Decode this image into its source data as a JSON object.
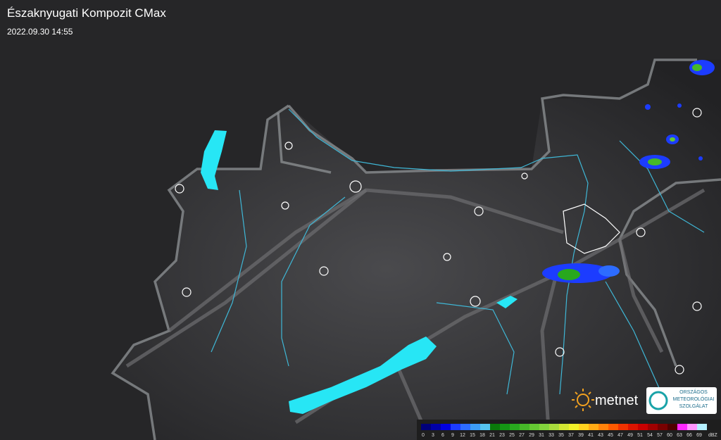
{
  "header": {
    "title": "Északnyugati Kompozit CMax",
    "timestamp": "2022.09.30 14:55"
  },
  "logos": {
    "metnet": "metnet",
    "omsz": [
      "ORSZÁGOS",
      "METEOROLÓGIAI",
      "SZOLGÁLAT"
    ]
  },
  "legend": {
    "unit": "dBZ",
    "steps": [
      {
        "value": 0,
        "color": "#00007a"
      },
      {
        "value": 3,
        "color": "#0000a8"
      },
      {
        "value": 6,
        "color": "#0000e0"
      },
      {
        "value": 9,
        "color": "#1c3cff"
      },
      {
        "value": 12,
        "color": "#2d6cff"
      },
      {
        "value": 15,
        "color": "#3c9cf6"
      },
      {
        "value": 18,
        "color": "#55c4ee"
      },
      {
        "value": 21,
        "color": "#0a7a0a"
      },
      {
        "value": 23,
        "color": "#149614"
      },
      {
        "value": 25,
        "color": "#28a81e"
      },
      {
        "value": 27,
        "color": "#46b828"
      },
      {
        "value": 29,
        "color": "#64c832"
      },
      {
        "value": 31,
        "color": "#82d43c"
      },
      {
        "value": 33,
        "color": "#a8dc3c"
      },
      {
        "value": 35,
        "color": "#d2e632"
      },
      {
        "value": 37,
        "color": "#f0f028"
      },
      {
        "value": 39,
        "color": "#ffd21e"
      },
      {
        "value": 41,
        "color": "#ffaa14"
      },
      {
        "value": 43,
        "color": "#ff820a"
      },
      {
        "value": 45,
        "color": "#ff5a00"
      },
      {
        "value": 47,
        "color": "#f03200"
      },
      {
        "value": 49,
        "color": "#dc1400"
      },
      {
        "value": 51,
        "color": "#c80000"
      },
      {
        "value": 54,
        "color": "#a00000"
      },
      {
        "value": 57,
        "color": "#780000"
      },
      {
        "value": 60,
        "color": "#500000"
      },
      {
        "value": 63,
        "color": "#ff28ff"
      },
      {
        "value": 66,
        "color": "#ff96ff"
      },
      {
        "value": 69,
        "color": "#b4f0ff"
      }
    ]
  }
}
